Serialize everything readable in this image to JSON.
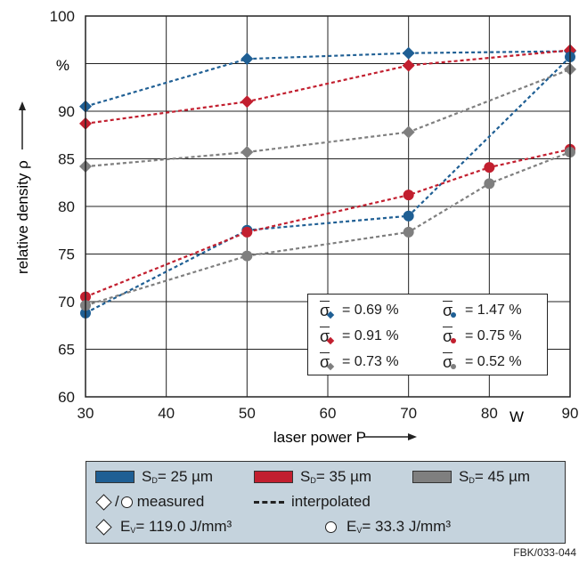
{
  "chart_data": {
    "type": "line",
    "xlabel": "laser power P",
    "ylabel": "relative density ρ",
    "x_unit": "W",
    "y_unit": "%",
    "xlim": [
      30,
      90
    ],
    "ylim": [
      60,
      100
    ],
    "x_ticks": [
      "30",
      "40",
      "50",
      "60",
      "70",
      "80",
      "90"
    ],
    "y_ticks": [
      "60",
      "65",
      "70",
      "75",
      "80",
      "85",
      "90",
      "95",
      "100"
    ],
    "grid": true,
    "series": [
      {
        "group": "SD=25",
        "marker": "diamond",
        "color": "#1f5f94",
        "points": [
          [
            30,
            90.5
          ],
          [
            50,
            95.5
          ],
          [
            70,
            96.1
          ],
          [
            90,
            96.3
          ]
        ]
      },
      {
        "group": "SD=35",
        "marker": "diamond",
        "color": "#c21f2f",
        "points": [
          [
            30,
            88.7
          ],
          [
            50,
            91.0
          ],
          [
            70,
            94.8
          ],
          [
            90,
            96.4
          ]
        ]
      },
      {
        "group": "SD=45",
        "marker": "diamond",
        "color": "#7f7f7f",
        "points": [
          [
            30,
            84.2
          ],
          [
            50,
            85.7
          ],
          [
            70,
            87.8
          ],
          [
            90,
            94.4
          ]
        ]
      },
      {
        "group": "SD=25",
        "marker": "circle",
        "color": "#1f5f94",
        "points": [
          [
            30,
            68.8
          ],
          [
            50,
            77.5
          ],
          [
            70,
            79.0
          ],
          [
            90,
            95.7
          ]
        ]
      },
      {
        "group": "SD=35",
        "marker": "circle",
        "color": "#c21f2f",
        "points": [
          [
            30,
            70.5
          ],
          [
            50,
            77.3
          ],
          [
            70,
            81.2
          ],
          [
            80,
            84.1
          ],
          [
            90,
            86.0
          ]
        ]
      },
      {
        "group": "SD=45",
        "marker": "circle",
        "color": "#7f7f7f",
        "points": [
          [
            30,
            69.6
          ],
          [
            50,
            74.8
          ],
          [
            70,
            77.3
          ],
          [
            80,
            82.4
          ],
          [
            90,
            85.7
          ]
        ]
      }
    ],
    "sigma_box": [
      {
        "marker": "diamond",
        "color": "#1f5f94",
        "text": "= 0.69 %"
      },
      {
        "marker": "circle",
        "color": "#1f5f94",
        "text": "= 1.47 %"
      },
      {
        "marker": "diamond",
        "color": "#c21f2f",
        "text": "= 0.91 %"
      },
      {
        "marker": "circle",
        "color": "#c21f2f",
        "text": "= 0.75 %"
      },
      {
        "marker": "diamond",
        "color": "#7f7f7f",
        "text": "= 0.73 %"
      },
      {
        "marker": "circle",
        "color": "#7f7f7f",
        "text": "= 0.52 %"
      }
    ],
    "sigma_symbol": "σ"
  },
  "legend": {
    "sd25": {
      "pre": "S",
      "sub": "D",
      "post": " = 25 µm",
      "color": "#1f5f94"
    },
    "sd35": {
      "pre": "S",
      "sub": "D",
      "post": " = 35 µm",
      "color": "#c21f2f"
    },
    "sd45": {
      "pre": "S",
      "sub": "D",
      "post": " = 45 µm",
      "color": "#7f7f7f"
    },
    "measured_sep": "/",
    "measured": "measured",
    "interpolated": "interpolated",
    "ev1": {
      "pre": "E",
      "sub": "V",
      "post": " = 119.0 J/mm³"
    },
    "ev2": {
      "pre": "E",
      "sub": "V",
      "post": " = 33.3 J/mm³"
    }
  },
  "figure_id": "FBK/033-044"
}
